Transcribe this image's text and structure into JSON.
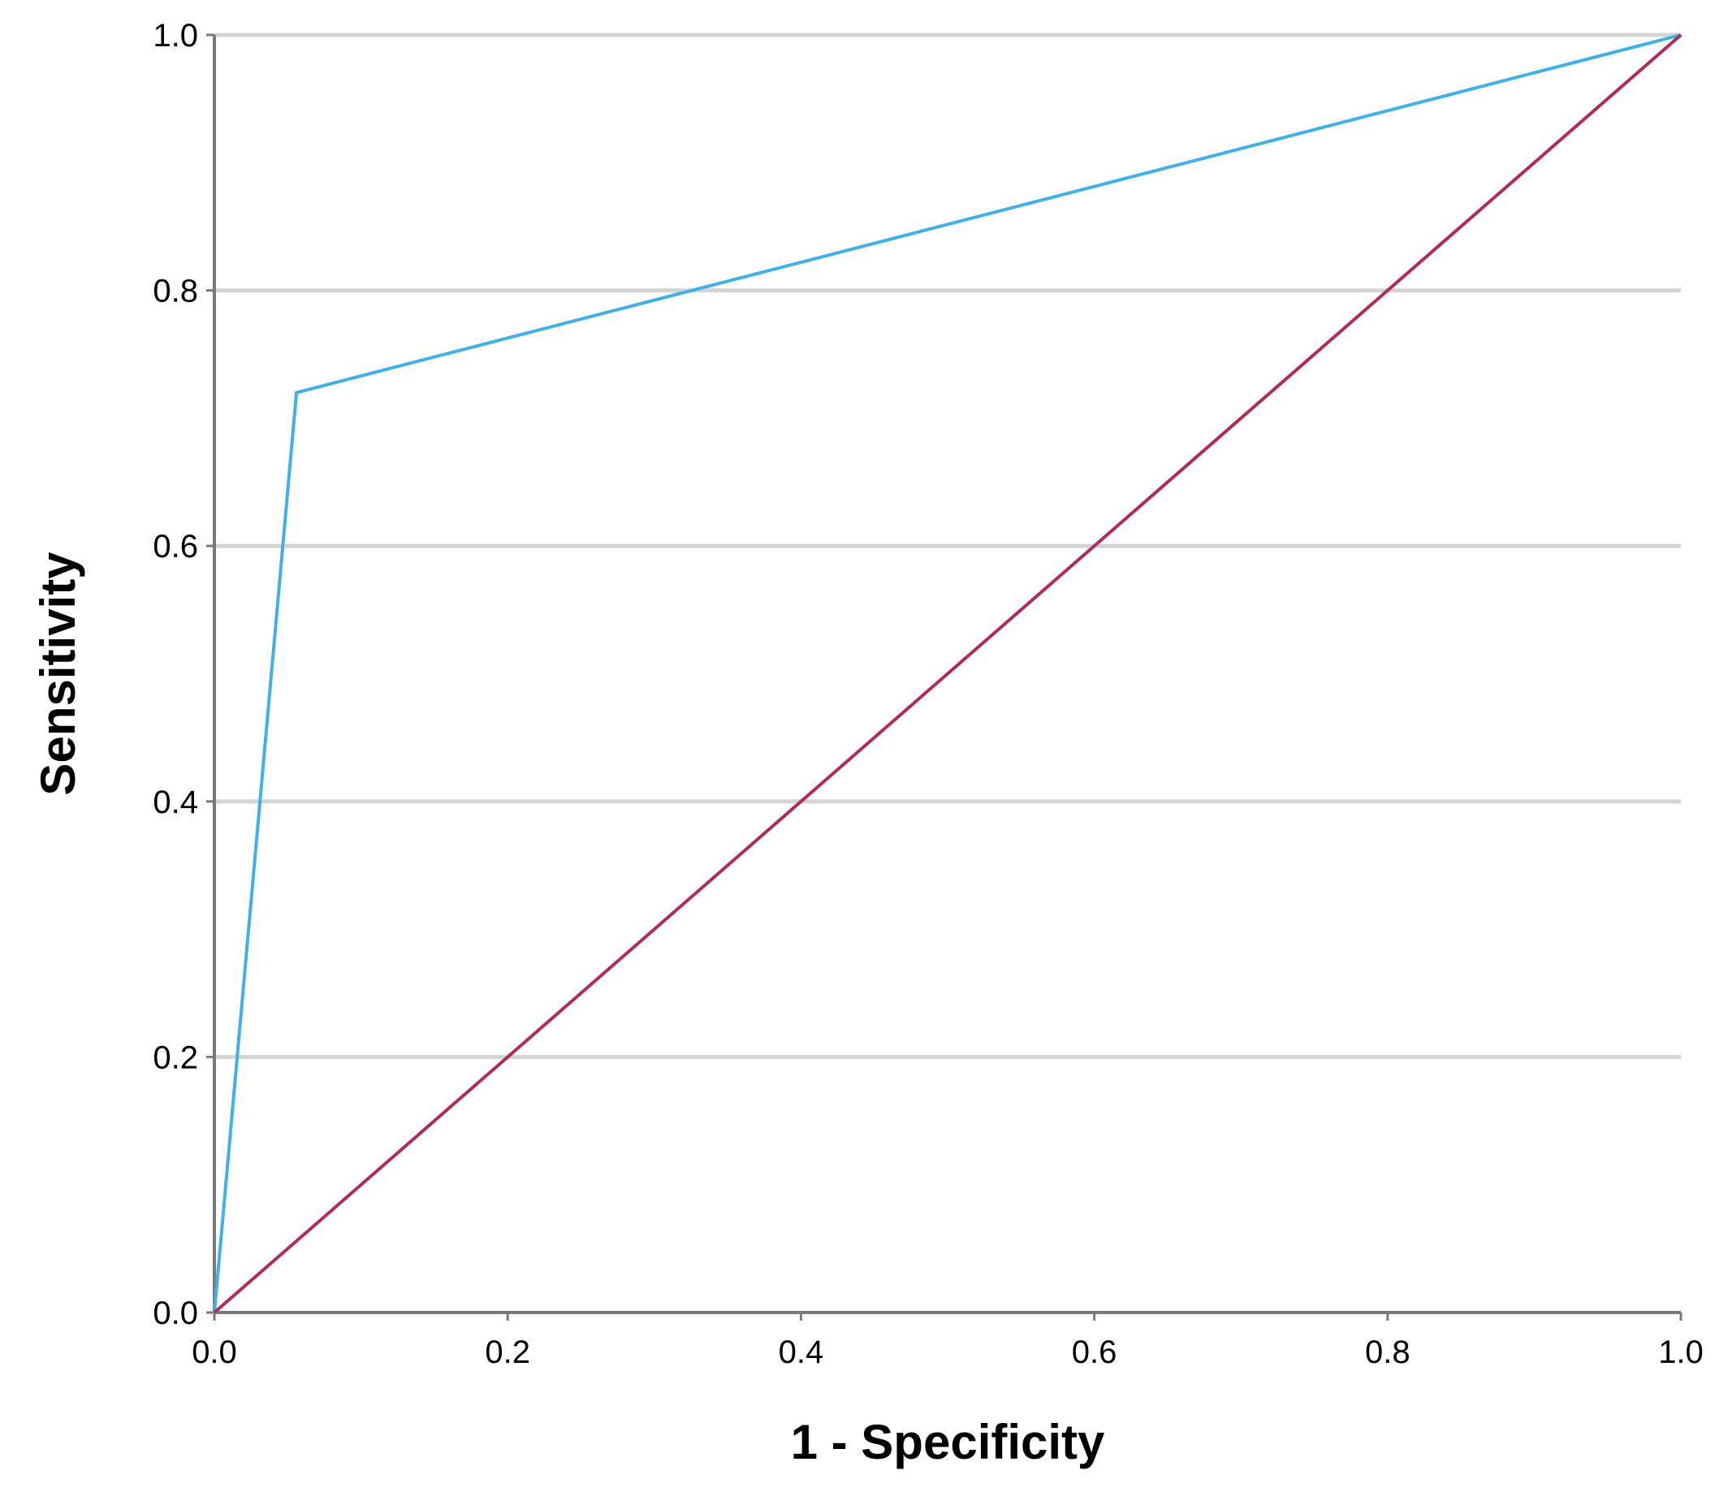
{
  "chart_data": {
    "type": "line",
    "title": "",
    "xlabel": "1 - Specificity",
    "ylabel": "Sensitivity",
    "xlim": [
      0,
      1
    ],
    "ylim": [
      0,
      1
    ],
    "x_ticks": [
      "0.0",
      "0.2",
      "0.4",
      "0.6",
      "0.8",
      "1.0"
    ],
    "y_ticks": [
      "0.0",
      "0.2",
      "0.4",
      "0.6",
      "0.8",
      "1.0"
    ],
    "grid": "horizontal",
    "legend": "none",
    "series": [
      {
        "color": "#3fb1e8",
        "points": [
          {
            "x": 0.0,
            "y": 0.0
          },
          {
            "x": 0.056,
            "y": 0.72
          },
          {
            "x": 1.0,
            "y": 1.0
          }
        ]
      },
      {
        "color": "#b02a5a",
        "points": [
          {
            "x": 0.0,
            "y": 0.0
          },
          {
            "x": 1.0,
            "y": 1.0
          }
        ]
      }
    ]
  }
}
